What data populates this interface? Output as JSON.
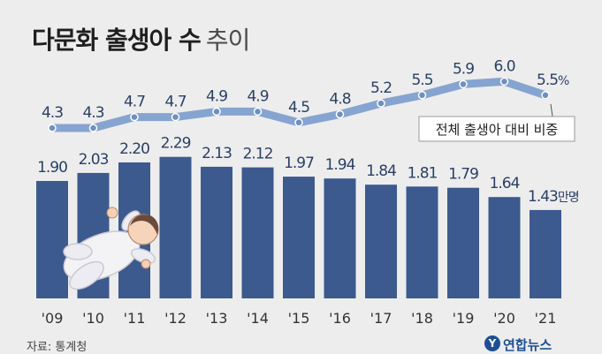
{
  "title": {
    "main": "다문화 출생아 수",
    "sub": "추이"
  },
  "source": "자료: 통계청",
  "logo": {
    "mark": "Y",
    "text": "연합뉴스"
  },
  "colors": {
    "bar": "#3c5a8e",
    "line": "#86a4d0",
    "dot": "#6e8fc4",
    "background": "#ededed"
  },
  "illustration": "baby-illustration",
  "chart_data": {
    "type": "bar",
    "categories": [
      "'09",
      "'10",
      "'11",
      "'12",
      "'13",
      "'14",
      "'15",
      "'16",
      "'17",
      "'18",
      "'19",
      "'20",
      "'21"
    ],
    "series": [
      {
        "name": "다문화 출생아 수",
        "type": "bar",
        "unit": "만명",
        "values": [
          1.9,
          2.03,
          2.2,
          2.29,
          2.13,
          2.12,
          1.97,
          1.94,
          1.84,
          1.81,
          1.79,
          1.64,
          1.43
        ],
        "labels": [
          "1.90",
          "2.03",
          "2.20",
          "2.29",
          "2.13",
          "2.12",
          "1.97",
          "1.94",
          "1.84",
          "1.81",
          "1.79",
          "1.64",
          "1.43만명"
        ]
      },
      {
        "name": "전체 출생아 대비 비중",
        "type": "line",
        "unit": "%",
        "values": [
          4.3,
          4.3,
          4.7,
          4.7,
          4.9,
          4.9,
          4.5,
          4.8,
          5.2,
          5.5,
          5.9,
          6.0,
          5.5
        ],
        "labels": [
          "4.3",
          "4.3",
          "4.7",
          "4.7",
          "4.9",
          "4.9",
          "4.5",
          "4.8",
          "5.2",
          "5.5",
          "5.9",
          "6.0",
          "5.5%"
        ]
      }
    ],
    "annotation": "전체 출생아 대비 비중",
    "grid": false,
    "legend": "none"
  }
}
